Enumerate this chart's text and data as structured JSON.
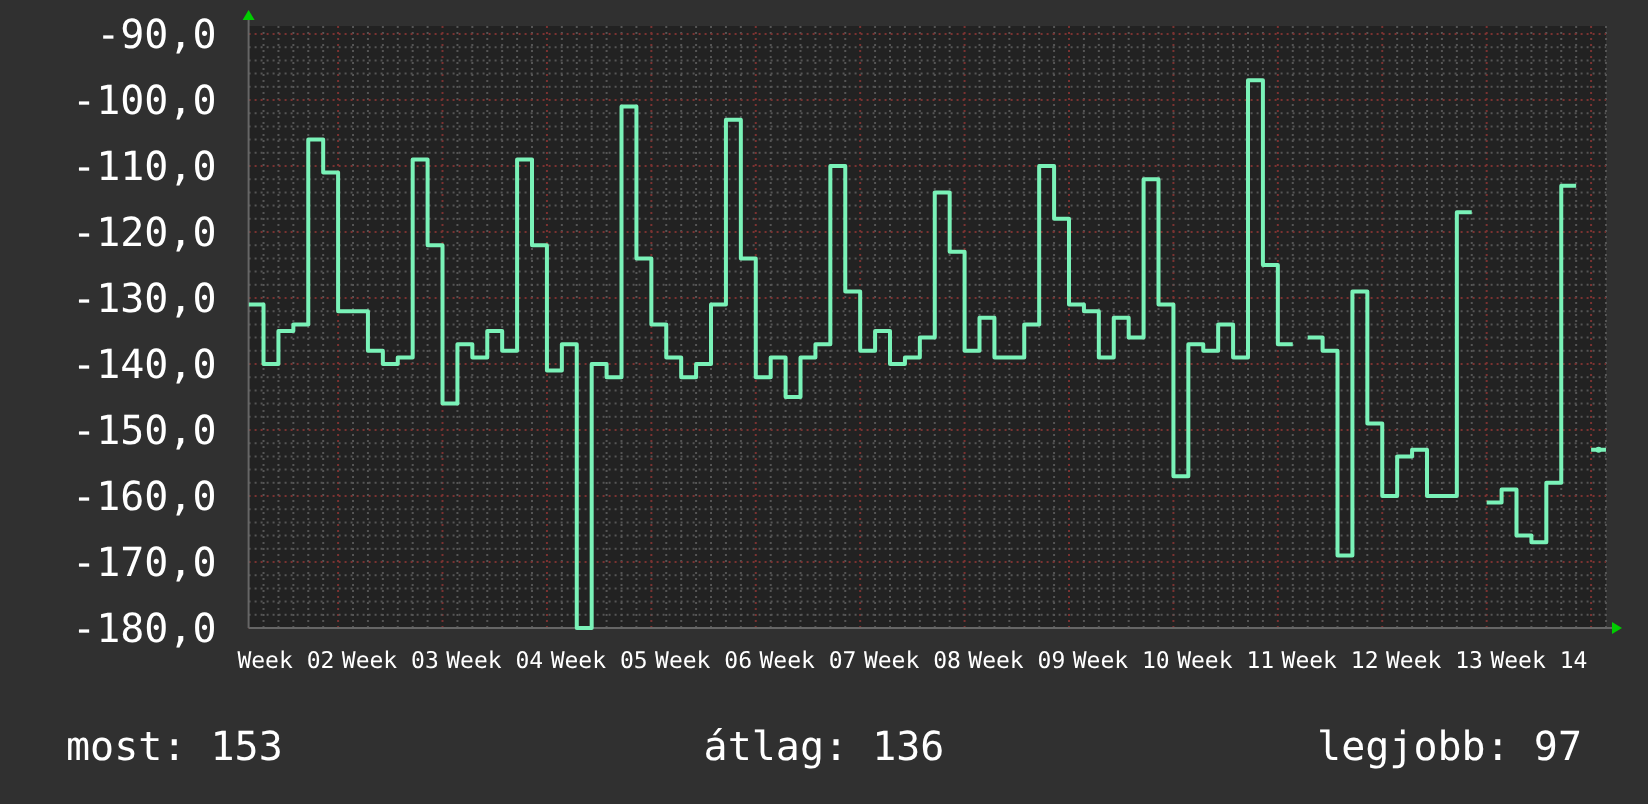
{
  "chart_data": {
    "type": "step",
    "categories": [
      null,
      null,
      "Week 02",
      null,
      null,
      null,
      null,
      null,
      null,
      "Week 03",
      null,
      null,
      null,
      null,
      null,
      null,
      "Week 04",
      null,
      null,
      null,
      null,
      null,
      null,
      "Week 05",
      null,
      null,
      null,
      null,
      null,
      null,
      "Week 06",
      null,
      null,
      null,
      null,
      null,
      null,
      "Week 07",
      null,
      null,
      null,
      null,
      null,
      null,
      "Week 08",
      null,
      null,
      null,
      null,
      null,
      null,
      "Week 09",
      null,
      null,
      null,
      null,
      null,
      null,
      "Week 10",
      null,
      null,
      null,
      null,
      null,
      null,
      "Week 11",
      null,
      null,
      null,
      null,
      null,
      null,
      "Week 12",
      null,
      null,
      null,
      null,
      null,
      null,
      "Week 13",
      null,
      null,
      null,
      null,
      null,
      null,
      "Week 14",
      null,
      null,
      null,
      null
    ],
    "values": [
      -131,
      -140,
      -135,
      -134,
      -106,
      -111,
      -132,
      -132,
      -138,
      -140,
      -139,
      -109,
      -122,
      -146,
      -137,
      -139,
      -135,
      -138,
      -109,
      -122,
      -141,
      -137,
      -180,
      -140,
      -142,
      -101,
      -124,
      -134,
      -139,
      -142,
      -140,
      -131,
      -103,
      -124,
      -142,
      -139,
      -145,
      -139,
      -137,
      -110,
      -129,
      -138,
      -135,
      -140,
      -139,
      -136,
      -114,
      -123,
      -138,
      -133,
      -139,
      -139,
      -134,
      -110,
      -118,
      -131,
      -132,
      -139,
      -133,
      -136,
      -112,
      -131,
      -157,
      -137,
      -138,
      -134,
      -139,
      -97,
      -125,
      -137,
      null,
      -136,
      -138,
      -169,
      -129,
      -149,
      -160,
      -154,
      -153,
      -160,
      -160,
      -117,
      null,
      -161,
      -159,
      -166,
      -167,
      -158,
      -113,
      null,
      -153
    ],
    "color": "#7af2b8",
    "ylim": [
      -180,
      -90
    ],
    "yticks": [
      {
        "value": -90,
        "label": "-90,0"
      },
      {
        "value": -92,
        "label": null
      },
      {
        "value": -94,
        "label": null
      },
      {
        "value": -96,
        "label": null
      },
      {
        "value": -98,
        "label": null
      },
      {
        "value": -100,
        "label": "-100,0"
      },
      {
        "value": -102,
        "label": null
      },
      {
        "value": -104,
        "label": null
      },
      {
        "value": -106,
        "label": null
      },
      {
        "value": -108,
        "label": null
      },
      {
        "value": -110,
        "label": "-110,0"
      },
      {
        "value": -112,
        "label": null
      },
      {
        "value": -114,
        "label": null
      },
      {
        "value": -116,
        "label": null
      },
      {
        "value": -118,
        "label": null
      },
      {
        "value": -120,
        "label": "-120,0"
      },
      {
        "value": -122,
        "label": null
      },
      {
        "value": -124,
        "label": null
      },
      {
        "value": -126,
        "label": null
      },
      {
        "value": -128,
        "label": null
      },
      {
        "value": -130,
        "label": "-130,0"
      },
      {
        "value": -132,
        "label": null
      },
      {
        "value": -134,
        "label": null
      },
      {
        "value": -136,
        "label": null
      },
      {
        "value": -138,
        "label": null
      },
      {
        "value": -140,
        "label": "-140,0"
      },
      {
        "value": -142,
        "label": null
      },
      {
        "value": -144,
        "label": null
      },
      {
        "value": -146,
        "label": null
      },
      {
        "value": -148,
        "label": null
      },
      {
        "value": -150,
        "label": "-150,0"
      },
      {
        "value": -152,
        "label": null
      },
      {
        "value": -154,
        "label": null
      },
      {
        "value": -156,
        "label": null
      },
      {
        "value": -158,
        "label": null
      },
      {
        "value": -160,
        "label": "-160,0"
      },
      {
        "value": -162,
        "label": null
      },
      {
        "value": -164,
        "label": null
      },
      {
        "value": -166,
        "label": null
      },
      {
        "value": -168,
        "label": null
      },
      {
        "value": -170,
        "label": "-170,0"
      },
      {
        "value": -172,
        "label": null
      },
      {
        "value": -174,
        "label": null
      },
      {
        "value": -176,
        "label": null
      },
      {
        "value": -178,
        "label": null
      },
      {
        "value": -180,
        "label": "-180,0"
      }
    ],
    "grid": true,
    "annotations": [
      "most: 153",
      "átlag: 136",
      "legjobb: 97"
    ]
  }
}
